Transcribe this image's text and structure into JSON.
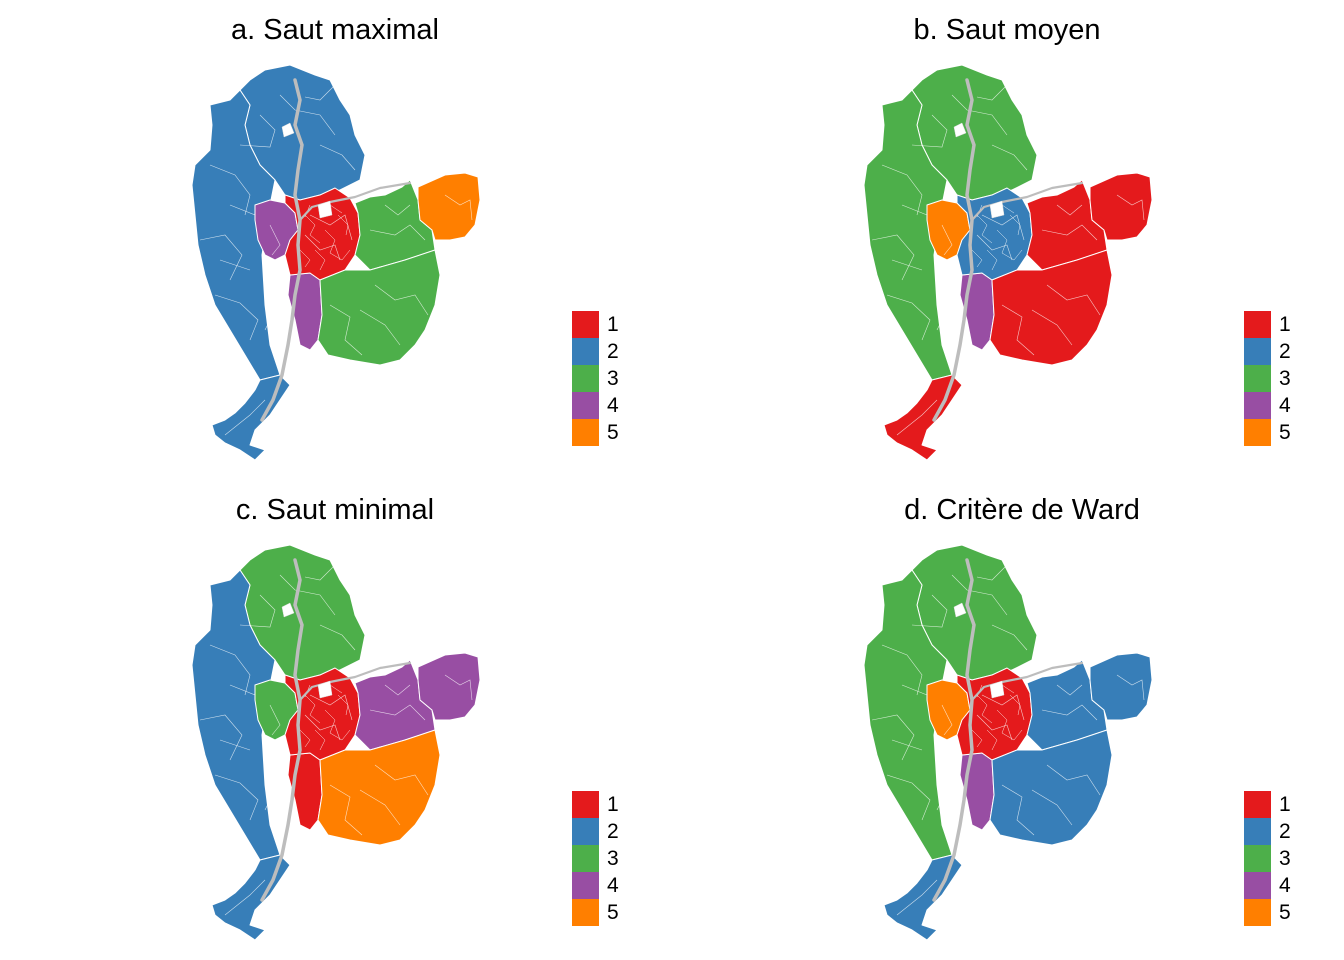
{
  "palette": {
    "1": "#E41A1C",
    "2": "#377EB8",
    "3": "#4DAF4A",
    "4": "#984EA3",
    "5": "#FF7F00"
  },
  "legend_labels": [
    "1",
    "2",
    "3",
    "4",
    "5"
  ],
  "panels": [
    {
      "title": "a. Saut maximal",
      "regions": {
        "north": "2",
        "west": "2",
        "south_tail": "2",
        "center": "1",
        "center_west": "4",
        "center_south": "4",
        "east": "3",
        "southeast": "3",
        "far_northeast": "5"
      }
    },
    {
      "title": "b. Saut moyen",
      "regions": {
        "north": "3",
        "west": "3",
        "south_tail": "1",
        "center": "2",
        "center_west": "5",
        "center_south": "4",
        "east": "1",
        "southeast": "1",
        "far_northeast": "1"
      }
    },
    {
      "title": "c. Saut minimal",
      "regions": {
        "north": "3",
        "west": "2",
        "south_tail": "2",
        "center": "1",
        "center_west": "3",
        "center_south": "1",
        "east": "4",
        "southeast": "5",
        "far_northeast": "4"
      }
    },
    {
      "title": "d. Critère de Ward",
      "regions": {
        "north": "3",
        "west": "3",
        "south_tail": "2",
        "center": "1",
        "center_west": "5",
        "center_south": "4",
        "east": "2",
        "southeast": "2",
        "far_northeast": "2"
      }
    }
  ]
}
